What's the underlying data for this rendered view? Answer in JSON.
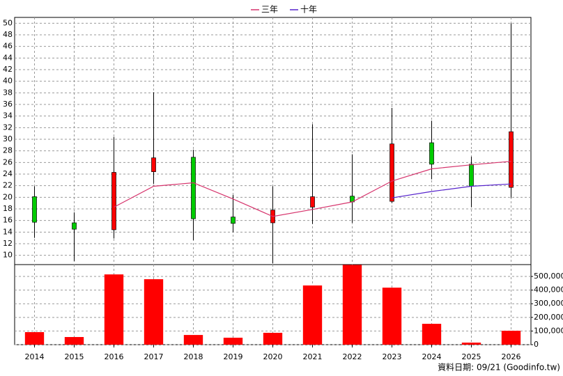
{
  "chart_data": [
    {
      "type": "candlestick",
      "categories": [
        "2014",
        "2015",
        "2016",
        "2017",
        "2018",
        "2019",
        "2020",
        "2021",
        "2022",
        "2023",
        "2024",
        "2025",
        "2026"
      ],
      "open": [
        20.1,
        15.6,
        14.4,
        24.4,
        26.9,
        16.6,
        15.6,
        18.3,
        20.2,
        19.3,
        29.4,
        25.7,
        21.7
      ],
      "high": [
        21.9,
        17.4,
        30.4,
        38.1,
        28.2,
        20.4,
        21.9,
        32.6,
        27.4,
        35.4,
        33.2,
        27.0,
        50.0
      ],
      "low": [
        13.0,
        9.0,
        12.9,
        22.3,
        12.6,
        14.0,
        8.6,
        15.4,
        15.6,
        19.0,
        23.1,
        18.3,
        19.9
      ],
      "close": [
        15.7,
        14.5,
        24.3,
        26.8,
        16.3,
        15.5,
        17.8,
        20.1,
        19.2,
        29.2,
        25.7,
        21.9,
        31.3
      ],
      "up_color": "#ff0000",
      "down_color": "#00cc00",
      "series": [
        {
          "name": "三年",
          "color": "#d6336c",
          "values": [
            null,
            null,
            18.3,
            21.9,
            22.5,
            19.7,
            16.7,
            17.9,
            19.2,
            22.8,
            24.9,
            25.6,
            26.2
          ]
        },
        {
          "name": "十年",
          "color": "#5522cc",
          "values": [
            null,
            null,
            null,
            null,
            null,
            null,
            null,
            null,
            null,
            19.9,
            21.0,
            21.9,
            22.3
          ]
        }
      ],
      "ylim": [
        8.4,
        51
      ],
      "yticks": [
        10,
        12,
        14,
        16,
        18,
        20,
        22,
        24,
        26,
        28,
        30,
        32,
        34,
        36,
        38,
        40,
        42,
        44,
        46,
        48,
        50
      ],
      "grid": true
    },
    {
      "type": "bar",
      "categories": [
        "2014",
        "2015",
        "2016",
        "2017",
        "2018",
        "2019",
        "2020",
        "2021",
        "2022",
        "2023",
        "2024",
        "2025",
        "2026"
      ],
      "values": [
        92000,
        56000,
        515000,
        480000,
        71000,
        51000,
        87000,
        434000,
        585000,
        418000,
        153000,
        15000,
        102000
      ],
      "color": "#ff0000",
      "ylim": [
        0,
        587000
      ],
      "yticks": [
        0,
        {
          "value": 100000,
          "label": "100,000"
        },
        {
          "value": 200000,
          "label": "200,000"
        },
        {
          "value": 300000,
          "label": "300,000"
        },
        {
          "value": 400000,
          "label": "400,000"
        },
        {
          "value": 500000,
          "label": "500,000"
        }
      ],
      "grid": true
    }
  ],
  "footer": "資料日期: 09/21  (Goodinfo.tw)"
}
